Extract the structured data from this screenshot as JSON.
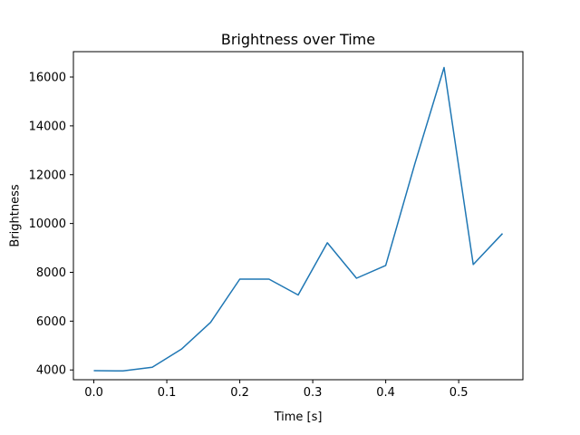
{
  "figure": {
    "title": "Brightness over Time",
    "xlabel": "Time [s]",
    "ylabel": "Brightness"
  },
  "chart_data": {
    "type": "line",
    "title": "Brightness over Time",
    "xlabel": "Time [s]",
    "ylabel": "Brightness",
    "x": [
      0.0,
      0.04,
      0.08,
      0.12,
      0.16,
      0.2,
      0.24,
      0.28,
      0.32,
      0.36,
      0.4,
      0.44,
      0.48,
      0.52,
      0.56
    ],
    "y": [
      3970,
      3960,
      4110,
      4850,
      5950,
      7720,
      7720,
      7070,
      9210,
      7760,
      8280,
      12450,
      16390,
      8320,
      9590
    ],
    "x_tick_values": [
      0.0,
      0.1,
      0.2,
      0.3,
      0.4,
      0.5
    ],
    "x_tick_labels": [
      "0.0",
      "0.1",
      "0.2",
      "0.3",
      "0.4",
      "0.5"
    ],
    "y_tick_values": [
      4000,
      6000,
      8000,
      10000,
      12000,
      14000,
      16000
    ],
    "y_tick_labels": [
      "4000",
      "6000",
      "8000",
      "10000",
      "12000",
      "14000",
      "16000"
    ],
    "xlim": [
      -0.028,
      0.588
    ],
    "ylim": [
      3600,
      17040
    ],
    "line_color": "#1f77b4",
    "spine_color": "#000000",
    "background_color": "#ffffff",
    "grid": false,
    "legend": null
  }
}
